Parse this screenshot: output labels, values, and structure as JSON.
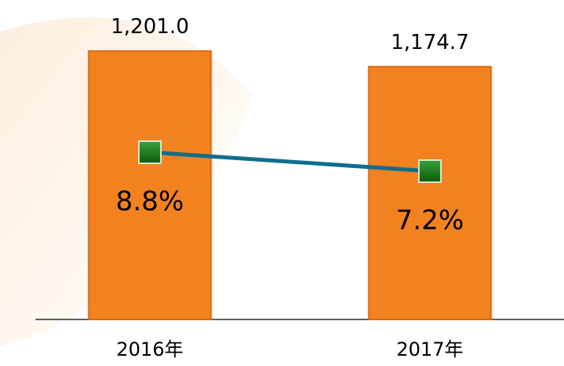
{
  "chart_data": {
    "type": "bar-line",
    "categories": [
      "2016年",
      "2017年"
    ],
    "series": [
      {
        "type": "bar",
        "color": "#f28220",
        "values": [
          1201.0,
          1174.7
        ],
        "value_labels": [
          "1,201.0",
          "1,174.7"
        ]
      },
      {
        "type": "line",
        "axis": "y2",
        "color": "#0f6e8c",
        "marker_color": "#1e7a1e",
        "values": [
          8.8,
          7.2
        ],
        "value_labels": [
          "8.8%",
          "7.2%"
        ]
      }
    ],
    "ylim": [
      750,
      1300
    ],
    "y2lim": [
      0,
      10
    ]
  }
}
